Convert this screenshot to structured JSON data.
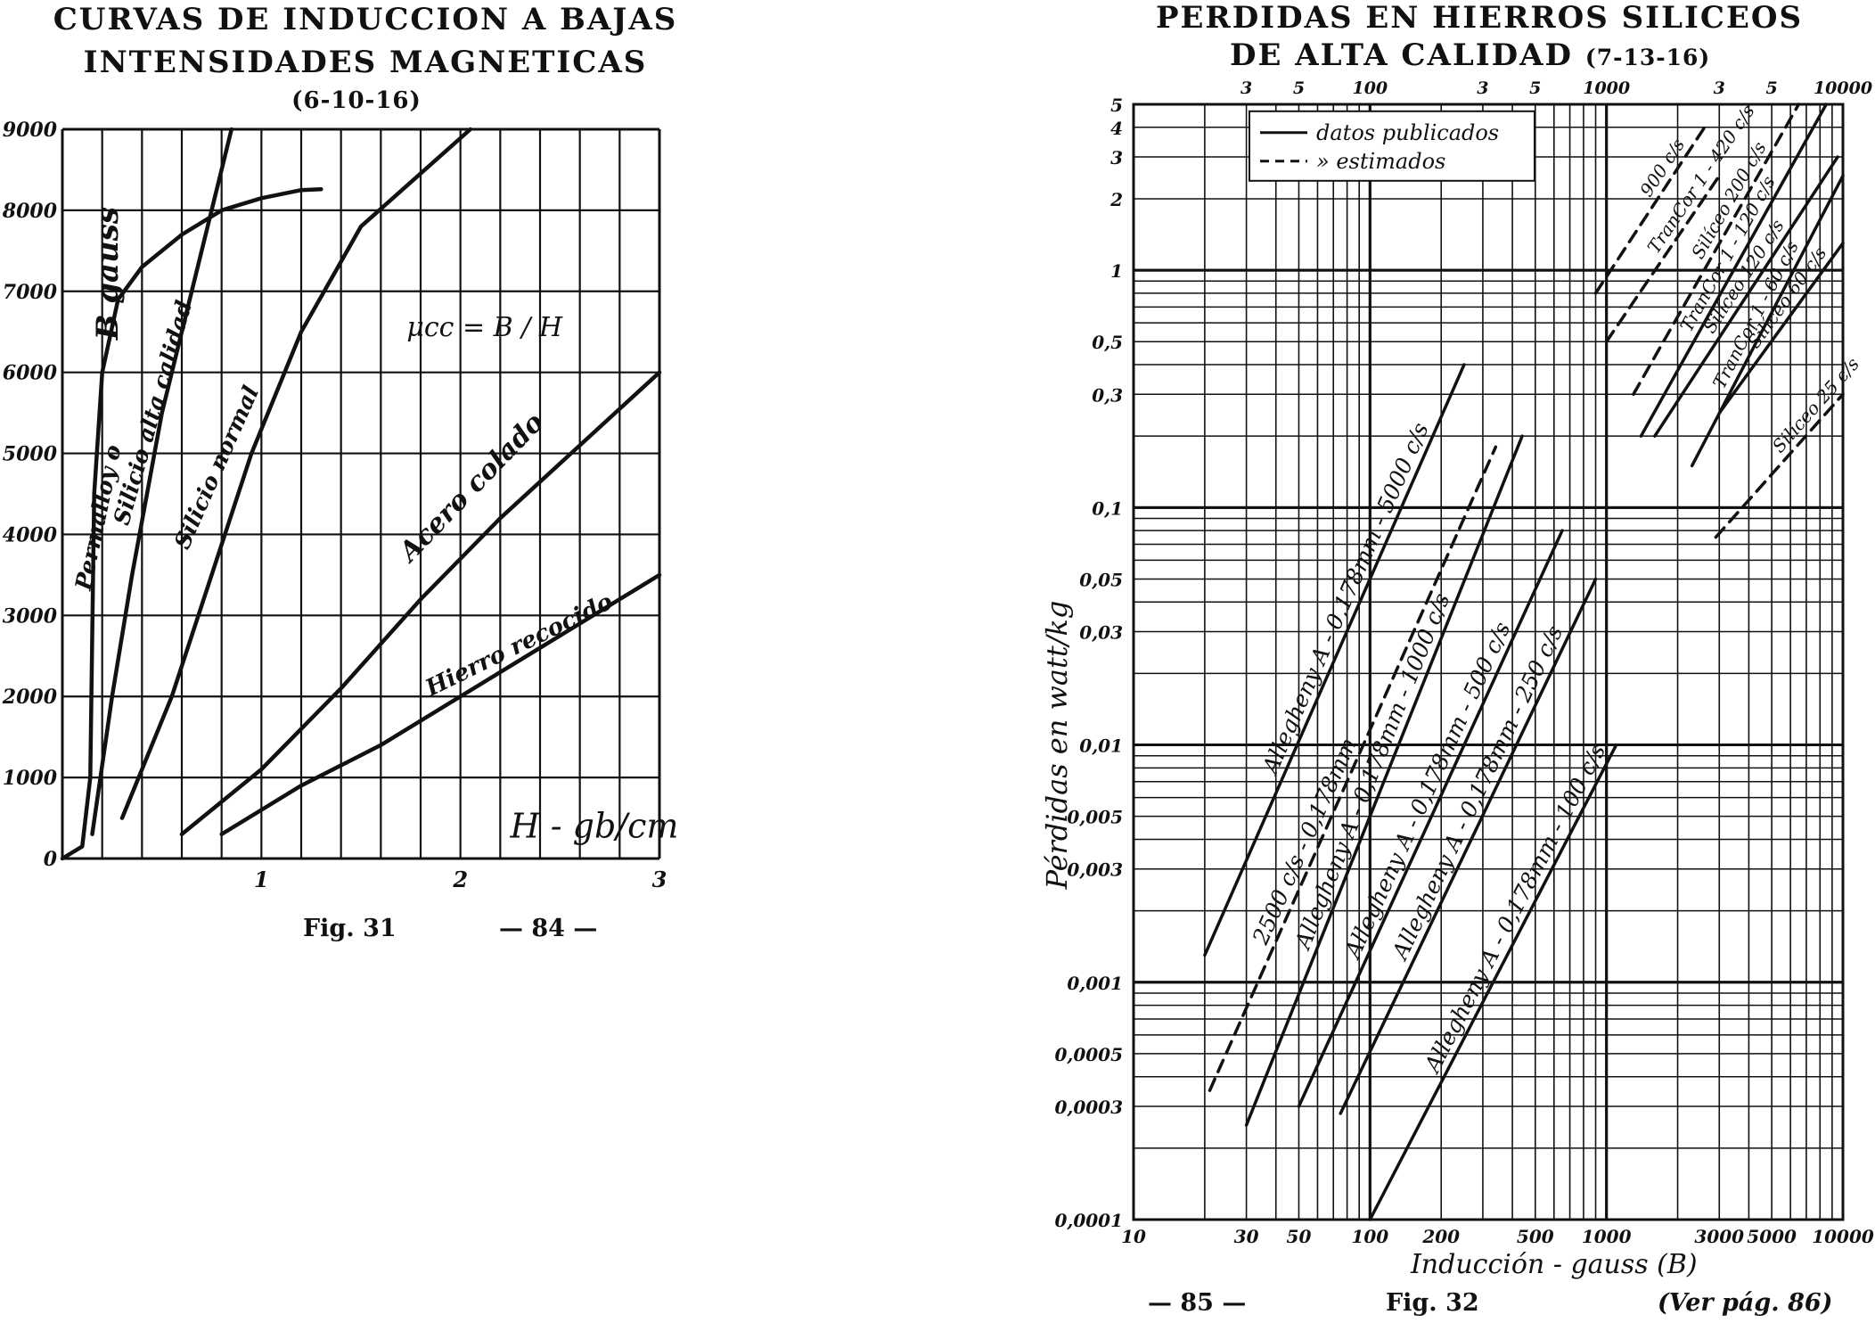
{
  "left": {
    "title_line1": "CURVAS DE INDUCCION A BAJAS",
    "title_line2": "INTENSIDADES MAGNETICAS",
    "title_code": "(6-10-16)",
    "fig_label": "Fig. 31",
    "page_number": "— 84 —"
  },
  "right": {
    "title_line1": "PERDIDAS EN HIERROS SILICEOS",
    "title_line2": "DE ALTA CALIDAD",
    "title_code": "(7-13-16)",
    "fig_label": "Fig. 32",
    "page_number": "— 85 —",
    "see_page": "(Ver pág. 86)"
  },
  "chart_data": [
    {
      "type": "line",
      "xlabel": "H - gb/cm",
      "ylabel": "B gauss",
      "formula": "μcc = B / H",
      "xlim": [
        0,
        3
      ],
      "ylim": [
        0,
        9000
      ],
      "x_ticks": [
        "1",
        "2",
        "3"
      ],
      "y_ticks": [
        "0",
        "1000",
        "2000",
        "3000",
        "4000",
        "5000",
        "6000",
        "7000",
        "8000",
        "9000"
      ],
      "grid": true,
      "series": [
        {
          "name": "Permalloy o",
          "x": [
            0.0,
            0.1,
            0.14,
            0.16,
            0.2,
            0.28,
            0.4,
            0.6,
            0.8,
            1.0,
            1.2,
            1.3
          ],
          "y": [
            0,
            150,
            1000,
            4500,
            6000,
            6900,
            7300,
            7700,
            8000,
            8150,
            8250,
            8260
          ]
        },
        {
          "name": "Silicio alta calidad",
          "x": [
            0.15,
            0.25,
            0.35,
            0.5,
            0.7,
            0.85
          ],
          "y": [
            300,
            2000,
            3500,
            5500,
            7500,
            9000
          ]
        },
        {
          "name": "Silicio normal",
          "x": [
            0.3,
            0.55,
            0.75,
            0.95,
            1.2,
            1.5,
            2.05
          ],
          "y": [
            500,
            2000,
            3500,
            5000,
            6500,
            7800,
            9000
          ]
        },
        {
          "name": "Acero colado",
          "x": [
            0.6,
            1.0,
            1.4,
            1.8,
            2.2,
            2.6,
            3.0
          ],
          "y": [
            300,
            1100,
            2100,
            3200,
            4200,
            5100,
            6000
          ]
        },
        {
          "name": "Hierro recocido",
          "x": [
            0.8,
            1.2,
            1.6,
            2.0,
            2.4,
            2.8,
            3.0
          ],
          "y": [
            300,
            900,
            1400,
            2000,
            2600,
            3200,
            3500
          ]
        }
      ]
    },
    {
      "type": "line",
      "scale": "log-log",
      "xlabel": "Inducción - gauss (B)",
      "ylabel": "Pérdidas en watt/kg",
      "xlim": [
        10,
        10000
      ],
      "ylim": [
        0.0001,
        5
      ],
      "x_ticks": [
        "10",
        "30",
        "50",
        "100",
        "200",
        "500",
        "1000",
        "3000",
        "5000",
        "10000"
      ],
      "x_ticks_top": [
        "3",
        "5",
        "100",
        "3",
        "5",
        "1000",
        "3",
        "5",
        "10000"
      ],
      "y_ticks": [
        "5",
        "4",
        "3",
        "2",
        "1",
        "0,5",
        "0,3",
        "0,1",
        "0,05",
        "0,03",
        "0,01",
        "0,005",
        "0,003",
        "0,001",
        "0,0005",
        "0,0003",
        "0,0001"
      ],
      "grid": true,
      "legend": {
        "placement": "top-left",
        "entries": [
          "datos publicados",
          "» estimados"
        ]
      },
      "series": [
        {
          "name": "Allegheny A - 0,178mm - 5000 c/s",
          "style": "solid",
          "x": [
            20,
            250
          ],
          "y": [
            0.0013,
            0.4
          ]
        },
        {
          "name": "2500 c/s - 0,178mm",
          "style": "dashed",
          "x": [
            21,
            340
          ],
          "y": [
            0.00035,
            0.18
          ]
        },
        {
          "name": "Allegheny A - 0,178mm - 1000 c/s",
          "style": "solid",
          "x": [
            30,
            440
          ],
          "y": [
            0.00025,
            0.2
          ]
        },
        {
          "name": "Allegheny A - 0,178mm - 500 c/s",
          "style": "solid",
          "x": [
            50,
            650
          ],
          "y": [
            0.0003,
            0.08
          ]
        },
        {
          "name": "Allegheny A - 0,178mm - 250 c/s",
          "style": "solid",
          "x": [
            75,
            900
          ],
          "y": [
            0.00028,
            0.05
          ]
        },
        {
          "name": "Allegheny A - 0,178mm - 100 c/s",
          "style": "solid",
          "x": [
            100,
            1100
          ],
          "y": [
            0.0001,
            0.01
          ]
        },
        {
          "name": "900 c/s",
          "style": "dashed",
          "x": [
            900,
            2600
          ],
          "y": [
            0.8,
            4.0
          ]
        },
        {
          "name": "TranCor 1 - 420 c/s",
          "style": "dashed",
          "x": [
            1000,
            3000
          ],
          "y": [
            0.5,
            2.5
          ]
        },
        {
          "name": "Silíceo 200 c/s",
          "style": "dashed",
          "x": [
            1300,
            6500
          ],
          "y": [
            0.3,
            5.0
          ]
        },
        {
          "name": "TranCor 1 - 120 c/s",
          "style": "solid",
          "x": [
            1400,
            8500
          ],
          "y": [
            0.2,
            5.0
          ]
        },
        {
          "name": "Silíceo 120 c/s",
          "style": "solid",
          "x": [
            1600,
            9500
          ],
          "y": [
            0.2,
            3.0
          ]
        },
        {
          "name": "TranCor 1 - 60 c/s",
          "style": "solid",
          "x": [
            2300,
            10000
          ],
          "y": [
            0.15,
            2.5
          ]
        },
        {
          "name": "Silíceo 60 c/s",
          "style": "solid",
          "x": [
            3000,
            10000
          ],
          "y": [
            0.25,
            1.3
          ]
        },
        {
          "name": "Silíceo 25 c/s",
          "style": "dashed",
          "x": [
            2900,
            10000
          ],
          "y": [
            0.075,
            0.3
          ]
        }
      ]
    }
  ]
}
